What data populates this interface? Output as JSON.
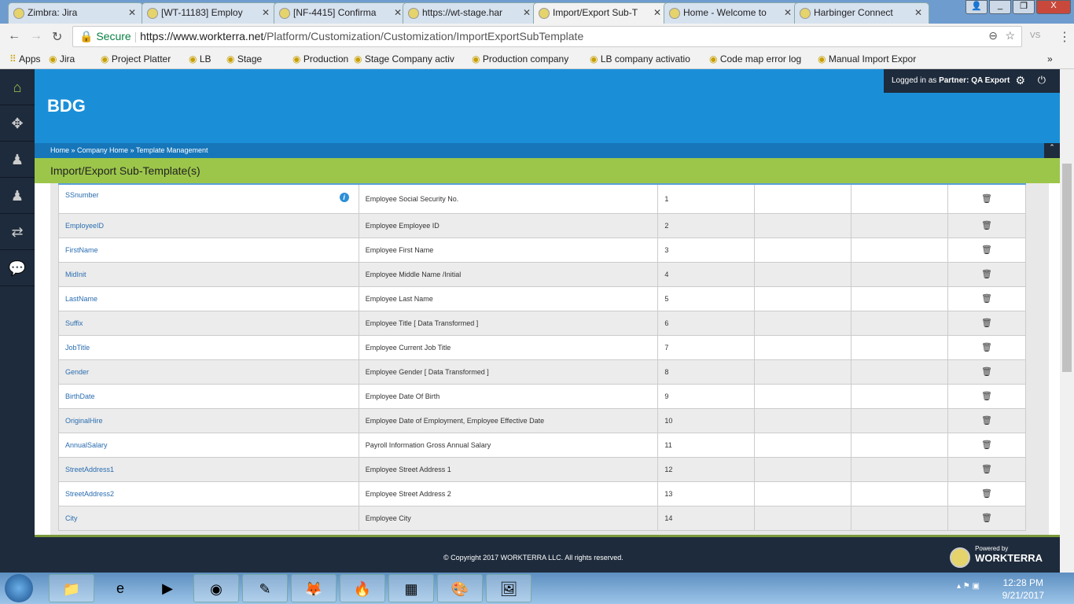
{
  "browser": {
    "tabs": [
      {
        "label": "Zimbra: Jira"
      },
      {
        "label": "[WT-11183] Employ"
      },
      {
        "label": "[NF-4415] Confirma"
      },
      {
        "label": "https://wt-stage.har"
      },
      {
        "label": "Import/Export Sub-T",
        "active": true
      },
      {
        "label": "Home - Welcome to"
      },
      {
        "label": "Harbinger Connect"
      }
    ],
    "secure_label": "Secure",
    "url_host": "https://www.workterra.net",
    "url_path": "/Platform/Customization/Customization/ImportExportSubTemplate",
    "bookmarks": [
      "Apps",
      "Jira",
      "Project Platter",
      "LB",
      "Stage",
      "Production",
      "Stage Company activ",
      "Production company",
      "LB company activatio",
      "Code map error log",
      "Manual Import Expor"
    ]
  },
  "header": {
    "company": "BDG",
    "logged_in_prefix": "Logged in as",
    "partner_label": "Partner:",
    "partner_name": "QA Export"
  },
  "breadcrumb": [
    "Home",
    "Company Home",
    "Template Management"
  ],
  "page_title": "Import/Export Sub-Template(s)",
  "rows": [
    {
      "field": "SSnumber",
      "desc": "Employee Social Security No.",
      "order": "1"
    },
    {
      "field": "EmployeeID",
      "desc": "Employee Employee ID",
      "order": "2"
    },
    {
      "field": "FirstName",
      "desc": "Employee First Name",
      "order": "3"
    },
    {
      "field": "MidInit",
      "desc": "Employee Middle Name /Initial",
      "order": "4"
    },
    {
      "field": "LastName",
      "desc": "Employee Last Name",
      "order": "5"
    },
    {
      "field": "Suffix",
      "desc": "Employee Title [ Data Transformed ]",
      "order": "6"
    },
    {
      "field": "JobTitle",
      "desc": "Employee Current Job Title",
      "order": "7"
    },
    {
      "field": "Gender",
      "desc": "Employee Gender [ Data Transformed ]",
      "order": "8"
    },
    {
      "field": "BirthDate",
      "desc": "Employee Date Of Birth",
      "order": "9"
    },
    {
      "field": "OriginalHire",
      "desc": "Employee Date of Employment, Employee Effective Date",
      "order": "10"
    },
    {
      "field": "AnnualSalary",
      "desc": "Payroll Information Gross Annual Salary",
      "order": "11"
    },
    {
      "field": "StreetAddress1",
      "desc": "Employee Street Address 1",
      "order": "12"
    },
    {
      "field": "StreetAddress2",
      "desc": "Employee Street Address 2",
      "order": "13"
    },
    {
      "field": "City",
      "desc": "Employee City",
      "order": "14"
    }
  ],
  "footer": {
    "copyright": "© Copyright 2017 WORKTERRA LLC. All rights reserved.",
    "powered_by": "Powered by",
    "brand": "WORKTERRA"
  },
  "taskbar": {
    "time": "12:28 PM",
    "date": "9/21/2017"
  }
}
